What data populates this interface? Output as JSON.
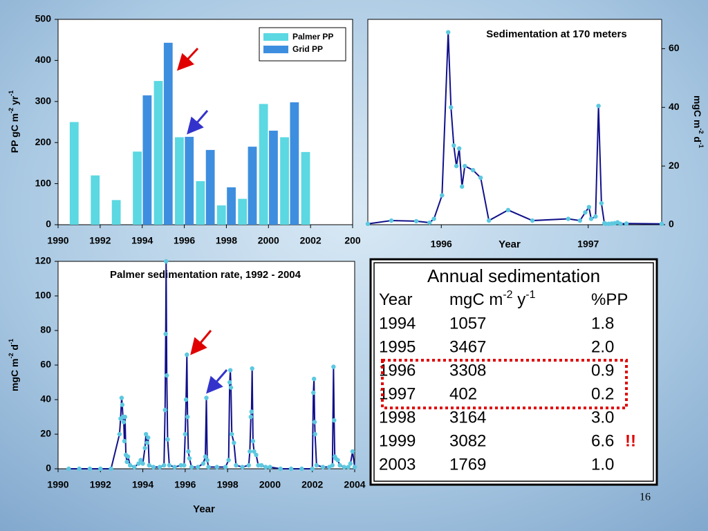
{
  "chart_data": [
    {
      "type": "bar",
      "x": [
        1991,
        1992,
        1993,
        1994,
        1995,
        1996,
        1997,
        1998,
        1999,
        2000,
        2001,
        2002
      ],
      "series": [
        {
          "name": "Palmer PP",
          "color": "#5bd8e2",
          "values": [
            250,
            120,
            60,
            178,
            350,
            213,
            106,
            47,
            63,
            294,
            213,
            177
          ]
        },
        {
          "name": "Grid PP",
          "color": "#3e8ee0",
          "values": [
            null,
            null,
            null,
            315,
            443,
            214,
            182,
            91,
            190,
            229,
            298,
            null
          ]
        }
      ],
      "y_label": [
        {
          "text": "PP gC m"
        },
        {
          "text": "-2",
          "sup": true
        },
        {
          "text": " yr"
        },
        {
          "text": "-1",
          "sup": true
        }
      ],
      "xlim": [
        1990,
        2004
      ],
      "xticks": [
        1990,
        1992,
        1994,
        1996,
        1998,
        2000,
        2002,
        {
          "value": 2004,
          "label": "200"
        }
      ],
      "ylim": [
        0,
        500
      ],
      "yticks": [
        0,
        100,
        200,
        300,
        400,
        500
      ],
      "legend": "upper right"
    },
    {
      "type": "line",
      "title": "Sedimentation at 170 meters",
      "x_label": "Year",
      "y_label": [
        {
          "text": "mgC m"
        },
        {
          "text": "-2",
          "sup": true
        },
        {
          "text": " d"
        },
        {
          "text": "-1",
          "sup": true
        }
      ],
      "x": [
        1995.5,
        1995.66,
        1995.83,
        1995.92,
        1995.95,
        1996.005,
        1996.047,
        1996.066,
        1996.085,
        1996.103,
        1996.122,
        1996.141,
        1996.16,
        1996.216,
        1996.268,
        1996.324,
        1996.455,
        1996.62,
        1996.864,
        1996.944,
        1996.98,
        1997.005,
        1997.02,
        1997.05,
        1997.07,
        1997.09,
        1997.11,
        1997.12,
        1997.14,
        1997.16,
        1997.18,
        1997.2,
        1997.22,
        1997.26,
        1997.5
      ],
      "series": [
        {
          "name": "Sedimentation",
          "color": "#10108a",
          "marker_color": "#5cc8e0",
          "axis": "y2",
          "values": [
            0.3,
            1.4,
            1.2,
            0.7,
            2,
            10,
            65.6,
            40,
            27,
            20,
            26,
            13,
            20,
            18.6,
            16,
            1.4,
            5,
            1.4,
            2,
            1.4,
            4.2,
            6,
            2,
            2.8,
            40.5,
            7.3,
            0.5,
            0.3,
            0.3,
            0.4,
            0.5,
            0.8,
            0.3,
            0.4,
            0.3
          ]
        }
      ],
      "xlim": [
        1995.5,
        1997.5
      ],
      "xticks": [
        1996,
        1997
      ],
      "y2lim": [
        0,
        70
      ],
      "y2ticks": [
        0,
        20,
        40,
        60
      ]
    },
    {
      "type": "line",
      "title": "Palmer sedimentation rate, 1992 - 2004",
      "x_label": "Year",
      "y_label": [
        {
          "text": "mgC m"
        },
        {
          "text": "-2",
          "sup": true
        },
        {
          "text": " d"
        },
        {
          "text": "-1",
          "sup": true
        }
      ],
      "x": [
        1990.5,
        1991,
        1991.5,
        1992,
        1992.5,
        1992.9,
        1992.95,
        1993.0,
        1993.03,
        1993.06,
        1993.1,
        1993.13,
        1993.16,
        1993.2,
        1993.25,
        1993.3,
        1993.4,
        1993.6,
        1993.8,
        1993.9,
        1994.0,
        1994.1,
        1994.15,
        1994.2,
        1994.25,
        1994.3,
        1994.5,
        1994.8,
        1995.0,
        1995.05,
        1995.08,
        1995.1,
        1995.13,
        1995.17,
        1995.25,
        1995.5,
        1995.8,
        1995.95,
        1996.0,
        1996.04,
        1996.08,
        1996.11,
        1996.15,
        1996.2,
        1996.3,
        1996.6,
        1996.85,
        1996.95,
        1997.0,
        1997.04,
        1997.1,
        1997.5,
        1997.9,
        1998.05,
        1998.1,
        1998.13,
        1998.16,
        1998.2,
        1998.3,
        1998.4,
        1998.7,
        1999.0,
        1999.05,
        1999.1,
        1999.13,
        1999.16,
        1999.2,
        1999.25,
        1999.35,
        1999.45,
        1999.6,
        1999.8,
        2000.0,
        2000.5,
        2001,
        2001.5,
        2002.0,
        2002.05,
        2002.08,
        2002.11,
        2002.13,
        2002.2,
        2002.5,
        2002.8,
        2002.95,
        2003.0,
        2003.03,
        2003.06,
        2003.1,
        2003.2,
        2003.3,
        2003.5,
        2003.7,
        2003.8,
        2003.9,
        2004.0
      ],
      "series": [
        {
          "name": "Palmer sedimentation",
          "color": "#10108a",
          "marker_color": "#5cc8e0",
          "values": [
            0,
            0,
            0,
            0,
            0,
            20,
            29,
            41,
            37,
            30,
            27,
            16,
            30,
            8,
            4,
            7,
            2,
            1,
            3,
            5,
            3,
            12,
            20,
            15,
            18,
            2,
            1,
            1,
            2,
            34,
            78,
            120,
            54,
            17,
            2,
            1,
            2,
            2,
            20,
            40,
            66,
            30,
            10,
            6,
            1,
            1,
            3,
            7,
            41,
            5,
            1,
            1,
            1,
            5,
            50,
            57,
            47,
            20,
            15,
            2,
            1,
            2,
            10,
            30,
            33,
            58,
            16,
            10,
            8,
            2,
            2,
            1,
            1,
            0,
            0,
            0,
            0,
            44,
            52,
            27,
            20,
            2,
            1,
            1,
            2,
            59,
            28,
            7,
            6,
            5,
            2,
            1,
            1,
            3,
            10,
            1
          ]
        }
      ],
      "xlim": [
        1990,
        2004
      ],
      "xticks": [
        1990,
        1992,
        1994,
        1996,
        1998,
        2000,
        2002,
        2004
      ],
      "ylim": [
        0,
        120
      ],
      "yticks": [
        0,
        20,
        40,
        60,
        80,
        100,
        120
      ]
    }
  ],
  "table": {
    "title": "Annual sedimentation",
    "header": [
      [
        {
          "text": "Year"
        }
      ],
      [
        {
          "text": "mgC m"
        },
        {
          "text": "-2",
          "sup": true
        },
        {
          "text": " y"
        },
        {
          "text": "-1",
          "sup": true
        }
      ],
      [
        {
          "text": "%PP"
        }
      ]
    ],
    "rows": [
      [
        "1994",
        "1057",
        "1.8"
      ],
      [
        "1995",
        "3467",
        "2.0"
      ],
      [
        "1996",
        "3308",
        "0.9"
      ],
      [
        "1997",
        "402",
        "0.2"
      ],
      [
        "1998",
        "3164",
        "3.0"
      ],
      [
        "1999",
        "3082",
        "6.6"
      ],
      [
        "2003",
        "1769",
        "1.0"
      ]
    ],
    "flag": "!!"
  },
  "page_number": "16"
}
